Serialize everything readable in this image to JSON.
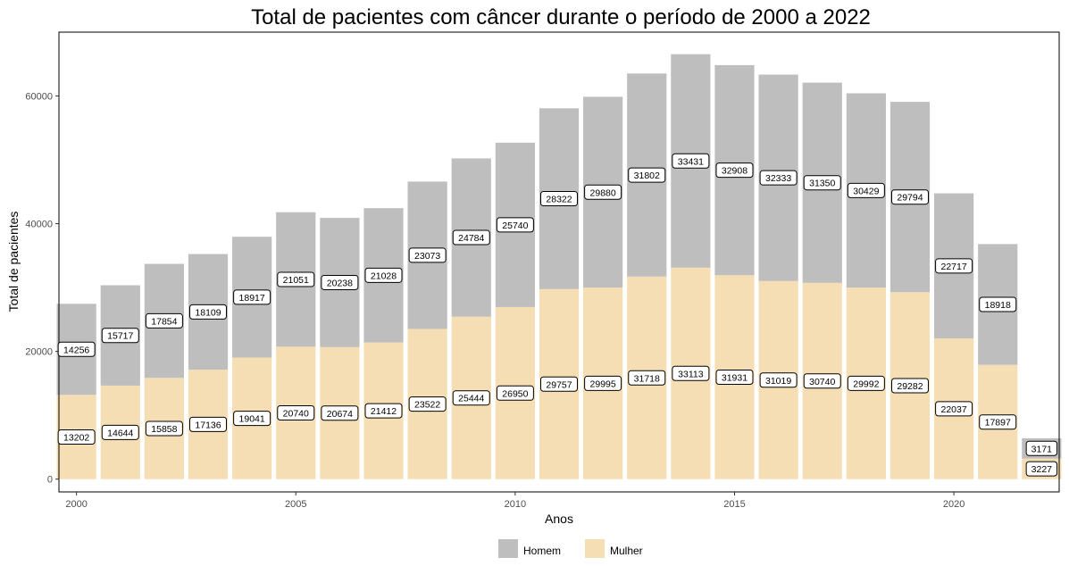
{
  "chart_data": {
    "type": "bar",
    "stacked": true,
    "title": "Total de pacientes com câncer durante o período de 2000 a 2022",
    "xlabel": "Anos",
    "ylabel": "Total de pacientes",
    "x": [
      2000,
      2001,
      2002,
      2003,
      2004,
      2005,
      2006,
      2007,
      2008,
      2009,
      2010,
      2011,
      2012,
      2013,
      2014,
      2015,
      2016,
      2017,
      2018,
      2019,
      2020,
      2021,
      2022
    ],
    "xlim": [
      1999.6,
      2022.4
    ],
    "ylim": [
      -2000,
      70000
    ],
    "x_ticks": [
      2000,
      2005,
      2010,
      2015,
      2020
    ],
    "y_ticks": [
      0,
      20000,
      40000,
      60000
    ],
    "series": [
      {
        "name": "Mulher",
        "color": "#f5deb3",
        "values": [
          13202,
          14644,
          15858,
          17136,
          19041,
          20740,
          20674,
          21412,
          23522,
          25444,
          26950,
          29757,
          29995,
          31718,
          33113,
          31931,
          31019,
          30740,
          29992,
          29282,
          22037,
          17897,
          3227
        ]
      },
      {
        "name": "Homem",
        "color": "#bebebe",
        "values": [
          14256,
          15717,
          17854,
          18109,
          18917,
          21051,
          20238,
          21028,
          23073,
          24784,
          25740,
          28322,
          29880,
          31802,
          33431,
          32908,
          32333,
          31350,
          30429,
          29794,
          22717,
          18918,
          3171
        ]
      }
    ],
    "legend": {
      "position": "bottom",
      "entries": [
        {
          "label": "Homem",
          "color": "#bebebe"
        },
        {
          "label": "Mulher",
          "color": "#f5deb3"
        }
      ]
    },
    "grid": false
  }
}
